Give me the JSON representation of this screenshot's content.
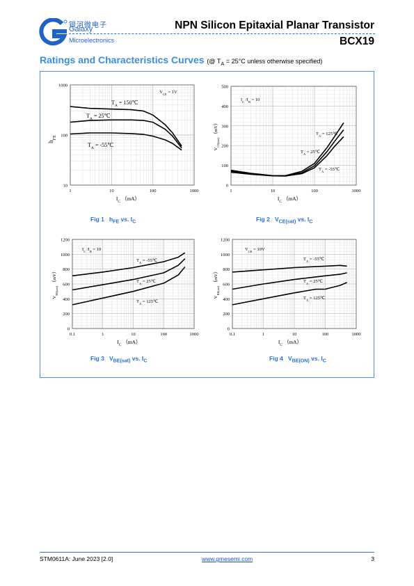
{
  "header": {
    "brand_cn": "银河微电子",
    "brand_en_1": "Galaxy",
    "brand_en_2": "Microelectronics",
    "title": "NPN Silicon Epitaxial Planar Transistor",
    "part_number": "BCX19",
    "logo_icon": "galaxy-g-logo-icon",
    "accent_color": "#1f63c9"
  },
  "section": {
    "title": "Ratings and Characteristics Curves",
    "condition_prefix": "(@ T",
    "condition_sub": "A",
    "condition_suffix": " = 25°C unless otherwise specified)"
  },
  "figures": [
    {
      "id": "fig1",
      "label": "Fig 1",
      "caption_main": "h",
      "caption_sub": "FE",
      "caption_mid": " vs. I",
      "caption_sub2": "C"
    },
    {
      "id": "fig2",
      "label": "Fig 2",
      "caption_main": "V",
      "caption_sub": "CE(sat)",
      "caption_mid": " vs. I",
      "caption_sub2": "C"
    },
    {
      "id": "fig3",
      "label": "Fig 3",
      "caption_main": "V",
      "caption_sub": "BE(sat)",
      "caption_mid": " vs. I",
      "caption_sub2": "C"
    },
    {
      "id": "fig4",
      "label": "Fig 4",
      "caption_main": "V",
      "caption_sub": "BE(ON)",
      "caption_mid": " vs. I",
      "caption_sub2": "C"
    }
  ],
  "chart_data": [
    {
      "type": "line",
      "id": "fig1",
      "x_scale": "log",
      "y_scale": "log",
      "xlim": [
        1,
        1000
      ],
      "ylim": [
        10,
        1000
      ],
      "xticks": [
        "1",
        "10",
        "100",
        "1000"
      ],
      "yticks": [
        "10",
        "100",
        "1000"
      ],
      "xlabel_main": "I",
      "xlabel_sub": "C",
      "xlabel_unit": "（mA）",
      "ylabel_main": "h",
      "ylabel_sub": "FE",
      "condition": {
        "main": "V",
        "sub": "CE",
        "rest": "= 1V"
      },
      "series": [
        {
          "name": "T",
          "name_sub": "A",
          "name_rest": "= 150℃",
          "x": [
            1,
            3,
            10,
            30,
            60,
            100,
            200,
            300,
            500
          ],
          "y": [
            370,
            340,
            330,
            320,
            300,
            250,
            160,
            110,
            60
          ]
        },
        {
          "name": "T",
          "name_sub": "A",
          "name_rest": "= 25℃",
          "x": [
            1,
            3,
            10,
            30,
            60,
            100,
            200,
            300,
            500
          ],
          "y": [
            180,
            195,
            200,
            200,
            195,
            180,
            130,
            95,
            55
          ]
        },
        {
          "name": "T",
          "name_sub": "A",
          "name_rest": "= -55℃",
          "x": [
            1,
            3,
            10,
            30,
            60,
            100,
            200,
            300,
            500
          ],
          "y": [
            105,
            110,
            110,
            107,
            103,
            95,
            80,
            68,
            50
          ]
        }
      ]
    },
    {
      "type": "line",
      "id": "fig2",
      "x_scale": "log",
      "y_scale": "linear",
      "xlim": [
        1,
        1000
      ],
      "ylim": [
        0,
        500
      ],
      "xticks": [
        "1",
        "10",
        "100",
        "1000"
      ],
      "yticks": [
        "0",
        "100",
        "200",
        "300",
        "400",
        "500"
      ],
      "xlabel_main": "I",
      "xlabel_sub": "C",
      "xlabel_unit": "（mA）",
      "ylabel_main": "V",
      "ylabel_sub": "CE(sat)",
      "ylabel_unit": "（mV）",
      "condition": {
        "main": "I",
        "sub": "C",
        "rest": "/I",
        "sub2": "B",
        "rest2": "= 10"
      },
      "series": [
        {
          "name": "T",
          "name_sub": "A",
          "name_rest": "= 125℃",
          "x": [
            1,
            3,
            10,
            20,
            50,
            100,
            200,
            300,
            500
          ],
          "y": [
            75,
            60,
            48,
            48,
            70,
            110,
            190,
            245,
            315
          ]
        },
        {
          "name": "T",
          "name_sub": "A",
          "name_rest": "= 25℃",
          "x": [
            1,
            3,
            10,
            20,
            50,
            100,
            200,
            300,
            500
          ],
          "y": [
            70,
            58,
            48,
            47,
            63,
            98,
            170,
            220,
            280
          ]
        },
        {
          "name": "T",
          "name_sub": "A",
          "name_rest": "= -55℃",
          "x": [
            1,
            3,
            10,
            20,
            50,
            100,
            200,
            300,
            500
          ],
          "y": [
            65,
            55,
            47,
            46,
            58,
            88,
            150,
            195,
            245
          ]
        }
      ]
    },
    {
      "type": "line",
      "id": "fig3",
      "x_scale": "log",
      "y_scale": "linear",
      "xlim": [
        0.1,
        1000
      ],
      "ylim": [
        0,
        1200
      ],
      "xticks": [
        "0.1",
        "1",
        "10",
        "100",
        "1000"
      ],
      "yticks": [
        "0",
        "200",
        "400",
        "600",
        "800",
        "1000",
        "1200"
      ],
      "xlabel_main": "I",
      "xlabel_sub": "C",
      "xlabel_unit": "（mA）",
      "ylabel_main": "V",
      "ylabel_sub": "BE(sat)",
      "ylabel_unit": "（mV）",
      "condition": {
        "main": "I",
        "sub": "C",
        "rest": "/I",
        "sub2": "B",
        "rest2": "= 10"
      },
      "series": [
        {
          "name": "T",
          "name_sub": "A",
          "name_rest": "= -55℃",
          "x": [
            0.1,
            1,
            10,
            100,
            300,
            500
          ],
          "y": [
            710,
            760,
            820,
            900,
            960,
            1020
          ]
        },
        {
          "name": "T",
          "name_sub": "A",
          "name_rest": "= 25℃",
          "x": [
            0.1,
            1,
            10,
            100,
            300,
            500
          ],
          "y": [
            520,
            590,
            660,
            750,
            850,
            940
          ]
        },
        {
          "name": "T",
          "name_sub": "A",
          "name_rest": "= 125℃",
          "x": [
            0.1,
            1,
            10,
            100,
            300,
            500
          ],
          "y": [
            320,
            410,
            500,
            610,
            720,
            830
          ]
        }
      ]
    },
    {
      "type": "line",
      "id": "fig4",
      "x_scale": "log",
      "y_scale": "linear",
      "xlim": [
        0.1,
        1000
      ],
      "ylim": [
        0,
        1200
      ],
      "xticks": [
        "0.1",
        "1",
        "10",
        "100",
        "1000"
      ],
      "yticks": [
        "0",
        "200",
        "400",
        "600",
        "800",
        "1000",
        "1200"
      ],
      "xlabel_main": "I",
      "xlabel_sub": "C",
      "xlabel_unit": "（mA）",
      "ylabel_main": "V",
      "ylabel_sub": "BE(on)",
      "ylabel_unit": "（mV）",
      "condition": {
        "main": "V",
        "sub": "CE",
        "rest": "= 10V"
      },
      "series": [
        {
          "name": "T",
          "name_sub": "A",
          "name_rest": "= -55℃",
          "x": [
            0.1,
            1,
            10,
            100,
            300,
            500
          ],
          "y": [
            760,
            790,
            820,
            840,
            850,
            840
          ]
        },
        {
          "name": "T",
          "name_sub": "A",
          "name_rest": "= 25℃",
          "x": [
            0.1,
            1,
            10,
            100,
            300,
            500
          ],
          "y": [
            530,
            600,
            660,
            710,
            730,
            750
          ]
        },
        {
          "name": "T",
          "name_sub": "A",
          "name_rest": "= 125℃",
          "x": [
            0.1,
            1,
            10,
            50,
            100,
            300,
            500
          ],
          "y": [
            320,
            400,
            480,
            530,
            530,
            580,
            620
          ]
        }
      ]
    }
  ],
  "footer": {
    "doc_id": "STM0611A: June 2023 [2.0]",
    "website": "www.gmesemi.com",
    "page": "3"
  }
}
